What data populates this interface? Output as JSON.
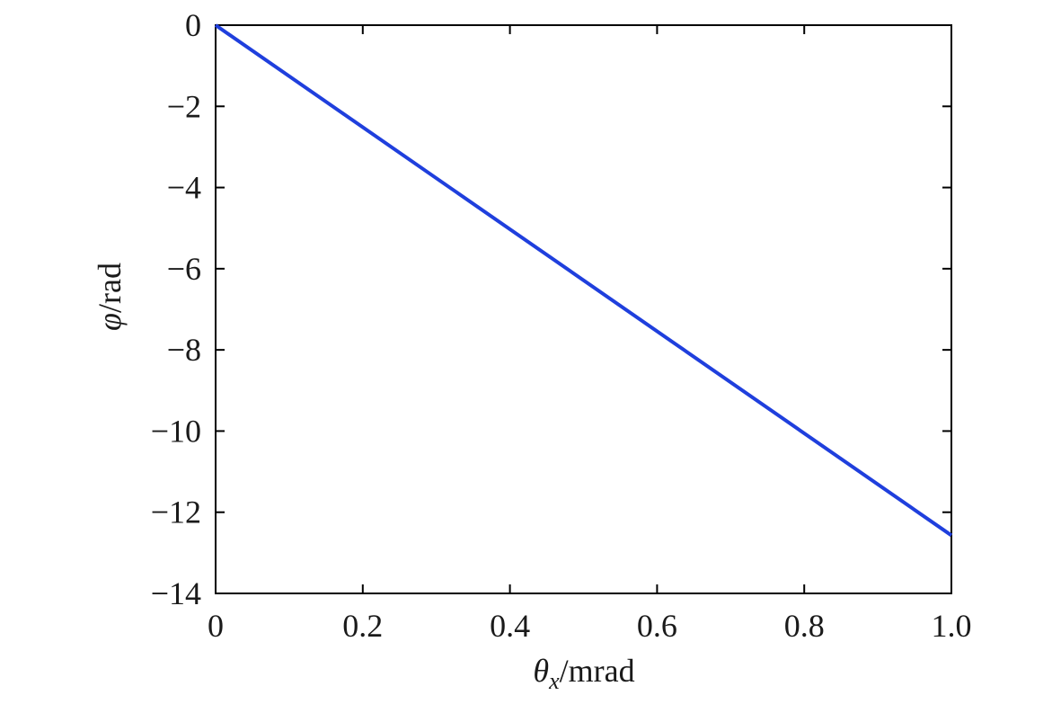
{
  "chart_data": {
    "type": "line",
    "xlabel": {
      "symbol": "θ",
      "subscript": "x",
      "unit": "/mrad"
    },
    "ylabel": {
      "symbol": "φ",
      "unit": "/rad"
    },
    "xlim": [
      0,
      1.0
    ],
    "ylim": [
      -14,
      0
    ],
    "x_ticks": [
      0,
      0.2,
      0.4,
      0.6,
      0.8,
      1.0
    ],
    "x_tick_labels": [
      "0",
      "0.2",
      "0.4",
      "0.6",
      "0.8",
      "1.0"
    ],
    "y_ticks": [
      0,
      -2,
      -4,
      -6,
      -8,
      -10,
      -12,
      -14
    ],
    "y_tick_labels": [
      "0",
      "−2",
      "−4",
      "−6",
      "−8",
      "−10",
      "−12",
      "−14"
    ],
    "grid": false,
    "series": [
      {
        "color": "#1f3fdd",
        "x": [
          0,
          1.0
        ],
        "y": [
          0,
          -12.57
        ]
      }
    ]
  }
}
